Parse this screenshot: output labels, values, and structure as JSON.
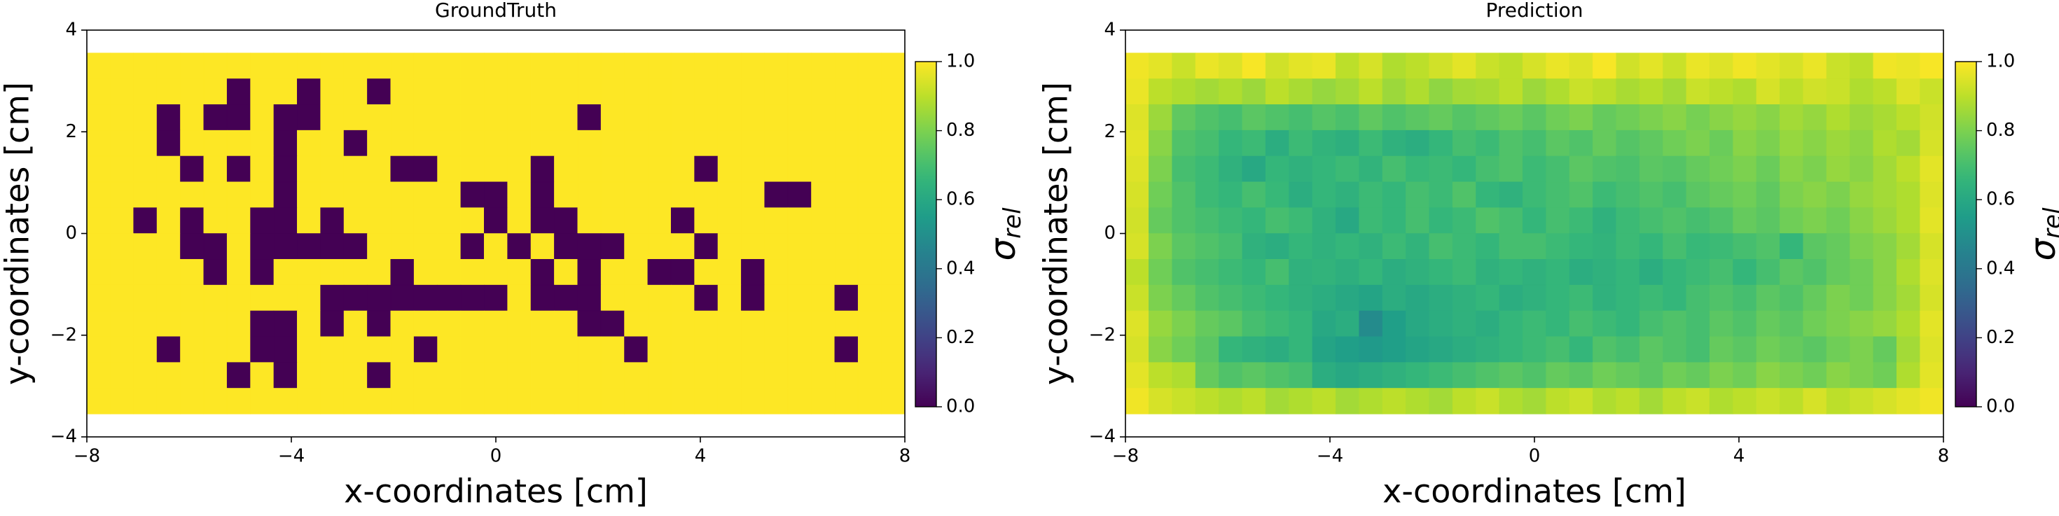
{
  "chart_data": [
    {
      "type": "heatmap",
      "title": "GroundTruth",
      "xlabel": "x-coordinates [cm]",
      "ylabel": "y-coordinates [cm]",
      "xlim": [
        -8,
        8
      ],
      "ylim": [
        -4,
        4
      ],
      "xticks": [
        {
          "value": -8,
          "label": "−8"
        },
        {
          "value": -4,
          "label": "−4"
        },
        0,
        4,
        8
      ],
      "yticks": [
        {
          "value": -4,
          "label": "−4"
        },
        {
          "value": -2,
          "label": "−2"
        },
        0,
        2,
        4
      ],
      "extent": [
        -8,
        8,
        -3.55,
        3.55
      ],
      "colormap": "viridis",
      "colorbar": {
        "symbol": "σ",
        "subscript": "rel",
        "lim": [
          0,
          1
        ],
        "ticks": [
          {
            "value": 0,
            "label": "0.0"
          },
          {
            "value": 0.2,
            "label": "0.2"
          },
          {
            "value": 0.4,
            "label": "0.4"
          },
          {
            "value": 0.6,
            "label": "0.6"
          },
          {
            "value": 0.8,
            "label": "0.8"
          },
          {
            "value": 1,
            "label": "1.0"
          }
        ]
      },
      "z": [
        [
          1,
          1,
          1,
          1,
          1,
          1,
          1,
          1,
          1,
          1,
          1,
          1,
          1,
          1,
          1,
          1,
          1,
          1,
          1,
          1,
          1,
          1,
          1,
          1,
          1,
          1,
          1,
          1,
          1,
          1,
          1,
          1,
          1,
          1,
          1
        ],
        [
          1,
          1,
          1,
          1,
          1,
          1,
          0,
          1,
          1,
          0,
          1,
          1,
          0,
          1,
          1,
          1,
          1,
          1,
          1,
          1,
          1,
          1,
          1,
          1,
          1,
          1,
          1,
          1,
          1,
          1,
          1,
          1,
          1,
          1,
          1
        ],
        [
          1,
          1,
          1,
          0,
          1,
          0,
          0,
          1,
          0,
          0,
          1,
          1,
          1,
          1,
          1,
          1,
          1,
          1,
          1,
          1,
          1,
          0,
          1,
          1,
          1,
          1,
          1,
          1,
          1,
          1,
          1,
          1,
          1,
          1,
          1
        ],
        [
          1,
          1,
          1,
          0,
          1,
          1,
          1,
          1,
          0,
          1,
          1,
          0,
          1,
          1,
          1,
          1,
          1,
          1,
          1,
          1,
          1,
          1,
          1,
          1,
          1,
          1,
          1,
          1,
          1,
          1,
          1,
          1,
          1,
          1,
          1
        ],
        [
          1,
          1,
          1,
          1,
          0,
          1,
          0,
          1,
          0,
          1,
          1,
          1,
          1,
          0,
          0,
          1,
          1,
          1,
          1,
          0,
          1,
          1,
          1,
          1,
          1,
          1,
          0,
          1,
          1,
          1,
          1,
          1,
          1,
          1,
          1
        ],
        [
          1,
          1,
          1,
          1,
          1,
          1,
          1,
          1,
          0,
          1,
          1,
          1,
          1,
          1,
          1,
          1,
          0,
          0,
          1,
          0,
          1,
          1,
          1,
          1,
          1,
          1,
          1,
          1,
          1,
          0,
          0,
          1,
          1,
          1,
          1
        ],
        [
          1,
          1,
          0,
          1,
          0,
          1,
          1,
          0,
          0,
          1,
          0,
          1,
          1,
          1,
          1,
          1,
          1,
          0,
          1,
          0,
          0,
          1,
          1,
          1,
          1,
          0,
          1,
          1,
          1,
          1,
          1,
          1,
          1,
          1,
          1
        ],
        [
          1,
          1,
          1,
          1,
          0,
          0,
          1,
          0,
          0,
          0,
          0,
          0,
          1,
          1,
          1,
          1,
          0,
          1,
          0,
          1,
          0,
          0,
          0,
          1,
          1,
          1,
          0,
          1,
          1,
          1,
          1,
          1,
          1,
          1,
          1
        ],
        [
          1,
          1,
          1,
          1,
          1,
          0,
          1,
          0,
          1,
          1,
          1,
          1,
          1,
          0,
          1,
          1,
          1,
          1,
          1,
          0,
          1,
          0,
          1,
          1,
          0,
          0,
          1,
          1,
          0,
          1,
          1,
          1,
          1,
          1,
          1
        ],
        [
          1,
          1,
          1,
          1,
          1,
          1,
          1,
          1,
          1,
          1,
          0,
          0,
          0,
          0,
          0,
          0,
          0,
          0,
          1,
          0,
          0,
          0,
          1,
          1,
          1,
          1,
          0,
          1,
          0,
          1,
          1,
          1,
          0,
          1,
          1
        ],
        [
          1,
          1,
          1,
          1,
          1,
          1,
          1,
          0,
          0,
          1,
          0,
          1,
          0,
          1,
          1,
          1,
          1,
          1,
          1,
          1,
          1,
          0,
          0,
          1,
          1,
          1,
          1,
          1,
          1,
          1,
          1,
          1,
          1,
          1,
          1
        ],
        [
          1,
          1,
          1,
          0,
          1,
          1,
          1,
          0,
          0,
          1,
          1,
          1,
          1,
          1,
          0,
          1,
          1,
          1,
          1,
          1,
          1,
          1,
          1,
          0,
          1,
          1,
          1,
          1,
          1,
          1,
          1,
          1,
          0,
          1,
          1
        ],
        [
          1,
          1,
          1,
          1,
          1,
          1,
          0,
          1,
          0,
          1,
          1,
          1,
          0,
          1,
          1,
          1,
          1,
          1,
          1,
          1,
          1,
          1,
          1,
          1,
          1,
          1,
          1,
          1,
          1,
          1,
          1,
          1,
          1,
          1,
          1
        ],
        [
          1,
          1,
          1,
          1,
          1,
          1,
          1,
          1,
          1,
          1,
          1,
          1,
          1,
          1,
          1,
          1,
          1,
          1,
          1,
          1,
          1,
          1,
          1,
          1,
          1,
          1,
          1,
          1,
          1,
          1,
          1,
          1,
          1,
          1,
          1
        ]
      ]
    },
    {
      "type": "heatmap",
      "title": "Prediction",
      "xlabel": "x-coordinates [cm]",
      "ylabel": "y-coordinates [cm]",
      "xlim": [
        -8,
        8
      ],
      "ylim": [
        -4,
        4
      ],
      "xticks": [
        {
          "value": -8,
          "label": "−8"
        },
        {
          "value": -4,
          "label": "−4"
        },
        0,
        4,
        8
      ],
      "yticks": [
        {
          "value": -4,
          "label": "−4"
        },
        {
          "value": -2,
          "label": "−2"
        },
        0,
        2,
        4
      ],
      "extent": [
        -8,
        8,
        -3.55,
        3.55
      ],
      "colormap": "viridis",
      "colorbar": {
        "symbol": "σ",
        "subscript": "rel",
        "lim": [
          0,
          1
        ],
        "ticks": [
          {
            "value": 0,
            "label": "0.0"
          },
          {
            "value": 0.2,
            "label": "0.2"
          },
          {
            "value": 0.4,
            "label": "0.4"
          },
          {
            "value": 0.6,
            "label": "0.6"
          },
          {
            "value": 0.8,
            "label": "0.8"
          },
          {
            "value": 1,
            "label": "1.0"
          }
        ]
      },
      "z": [
        [
          0.98,
          0.96,
          0.92,
          0.97,
          0.95,
          0.99,
          0.93,
          0.96,
          0.97,
          0.9,
          0.94,
          0.88,
          0.9,
          0.93,
          0.96,
          0.92,
          0.9,
          0.94,
          0.97,
          0.95,
          0.99,
          0.93,
          0.96,
          0.92,
          0.97,
          0.95,
          0.98,
          0.96,
          0.94,
          0.97,
          0.92,
          0.9,
          0.98,
          0.97,
          0.99
        ],
        [
          0.97,
          0.9,
          0.88,
          0.86,
          0.88,
          0.85,
          0.9,
          0.87,
          0.84,
          0.86,
          0.9,
          0.85,
          0.88,
          0.83,
          0.86,
          0.87,
          0.9,
          0.85,
          0.88,
          0.92,
          0.9,
          0.87,
          0.89,
          0.86,
          0.92,
          0.9,
          0.88,
          0.94,
          0.9,
          0.93,
          0.92,
          0.88,
          0.9,
          0.95,
          0.92
        ],
        [
          0.95,
          0.85,
          0.75,
          0.72,
          0.7,
          0.74,
          0.72,
          0.7,
          0.73,
          0.71,
          0.75,
          0.72,
          0.74,
          0.76,
          0.73,
          0.75,
          0.77,
          0.74,
          0.78,
          0.8,
          0.76,
          0.78,
          0.8,
          0.82,
          0.79,
          0.82,
          0.84,
          0.82,
          0.86,
          0.84,
          0.88,
          0.85,
          0.87,
          0.9,
          0.93
        ],
        [
          0.96,
          0.82,
          0.72,
          0.7,
          0.66,
          0.68,
          0.62,
          0.68,
          0.65,
          0.63,
          0.68,
          0.64,
          0.62,
          0.66,
          0.7,
          0.68,
          0.72,
          0.7,
          0.74,
          0.72,
          0.76,
          0.73,
          0.75,
          0.78,
          0.8,
          0.77,
          0.82,
          0.8,
          0.84,
          0.82,
          0.85,
          0.83,
          0.88,
          0.86,
          0.94
        ],
        [
          0.95,
          0.8,
          0.7,
          0.68,
          0.64,
          0.6,
          0.66,
          0.64,
          0.66,
          0.68,
          0.65,
          0.7,
          0.67,
          0.68,
          0.66,
          0.7,
          0.72,
          0.68,
          0.7,
          0.74,
          0.72,
          0.71,
          0.74,
          0.73,
          0.76,
          0.78,
          0.8,
          0.77,
          0.82,
          0.8,
          0.84,
          0.82,
          0.86,
          0.9,
          0.96
        ],
        [
          0.94,
          0.78,
          0.72,
          0.68,
          0.66,
          0.7,
          0.67,
          0.62,
          0.66,
          0.64,
          0.68,
          0.66,
          0.7,
          0.68,
          0.72,
          0.66,
          0.64,
          0.68,
          0.7,
          0.72,
          0.68,
          0.7,
          0.72,
          0.7,
          0.74,
          0.76,
          0.78,
          0.75,
          0.8,
          0.82,
          0.8,
          0.84,
          0.86,
          0.88,
          0.95
        ],
        [
          0.93,
          0.76,
          0.72,
          0.7,
          0.68,
          0.66,
          0.7,
          0.68,
          0.64,
          0.6,
          0.68,
          0.66,
          0.7,
          0.66,
          0.68,
          0.72,
          0.7,
          0.66,
          0.7,
          0.68,
          0.64,
          0.68,
          0.7,
          0.72,
          0.7,
          0.72,
          0.76,
          0.74,
          0.78,
          0.8,
          0.78,
          0.82,
          0.85,
          0.88,
          0.96
        ],
        [
          0.94,
          0.8,
          0.74,
          0.72,
          0.7,
          0.64,
          0.62,
          0.66,
          0.64,
          0.66,
          0.64,
          0.68,
          0.65,
          0.7,
          0.68,
          0.66,
          0.7,
          0.7,
          0.68,
          0.66,
          0.65,
          0.68,
          0.66,
          0.7,
          0.67,
          0.68,
          0.7,
          0.72,
          0.66,
          0.74,
          0.76,
          0.8,
          0.82,
          0.86,
          0.94
        ],
        [
          0.9,
          0.78,
          0.72,
          0.7,
          0.68,
          0.66,
          0.7,
          0.64,
          0.65,
          0.63,
          0.66,
          0.62,
          0.64,
          0.66,
          0.68,
          0.64,
          0.66,
          0.64,
          0.66,
          0.62,
          0.64,
          0.66,
          0.62,
          0.66,
          0.68,
          0.7,
          0.66,
          0.7,
          0.74,
          0.72,
          0.76,
          0.78,
          0.82,
          0.88,
          0.95
        ],
        [
          0.92,
          0.8,
          0.76,
          0.72,
          0.7,
          0.68,
          0.66,
          0.64,
          0.62,
          0.6,
          0.58,
          0.62,
          0.6,
          0.62,
          0.64,
          0.66,
          0.62,
          0.64,
          0.66,
          0.68,
          0.64,
          0.66,
          0.68,
          0.66,
          0.7,
          0.72,
          0.7,
          0.74,
          0.72,
          0.76,
          0.8,
          0.78,
          0.82,
          0.86,
          0.94
        ],
        [
          0.95,
          0.84,
          0.8,
          0.76,
          0.74,
          0.7,
          0.68,
          0.66,
          0.6,
          0.62,
          0.48,
          0.56,
          0.6,
          0.62,
          0.64,
          0.62,
          0.66,
          0.68,
          0.66,
          0.7,
          0.68,
          0.66,
          0.7,
          0.72,
          0.7,
          0.74,
          0.72,
          0.76,
          0.74,
          0.78,
          0.8,
          0.82,
          0.84,
          0.88,
          0.96
        ],
        [
          0.94,
          0.82,
          0.78,
          0.74,
          0.66,
          0.64,
          0.62,
          0.66,
          0.58,
          0.56,
          0.54,
          0.56,
          0.58,
          0.6,
          0.62,
          0.64,
          0.66,
          0.68,
          0.7,
          0.66,
          0.72,
          0.7,
          0.74,
          0.72,
          0.7,
          0.76,
          0.74,
          0.78,
          0.76,
          0.74,
          0.78,
          0.8,
          0.76,
          0.86,
          0.95
        ],
        [
          0.96,
          0.9,
          0.88,
          0.76,
          0.72,
          0.74,
          0.72,
          0.7,
          0.62,
          0.6,
          0.62,
          0.64,
          0.66,
          0.68,
          0.7,
          0.72,
          0.74,
          0.72,
          0.76,
          0.74,
          0.78,
          0.76,
          0.74,
          0.78,
          0.76,
          0.8,
          0.78,
          0.82,
          0.8,
          0.78,
          0.82,
          0.8,
          0.78,
          0.88,
          0.96
        ],
        [
          0.98,
          0.94,
          0.92,
          0.9,
          0.88,
          0.9,
          0.86,
          0.88,
          0.9,
          0.86,
          0.88,
          0.9,
          0.88,
          0.86,
          0.9,
          0.92,
          0.88,
          0.86,
          0.9,
          0.92,
          0.88,
          0.9,
          0.86,
          0.9,
          0.92,
          0.88,
          0.9,
          0.92,
          0.9,
          0.94,
          0.9,
          0.92,
          0.94,
          0.96,
          0.98
        ]
      ]
    }
  ]
}
